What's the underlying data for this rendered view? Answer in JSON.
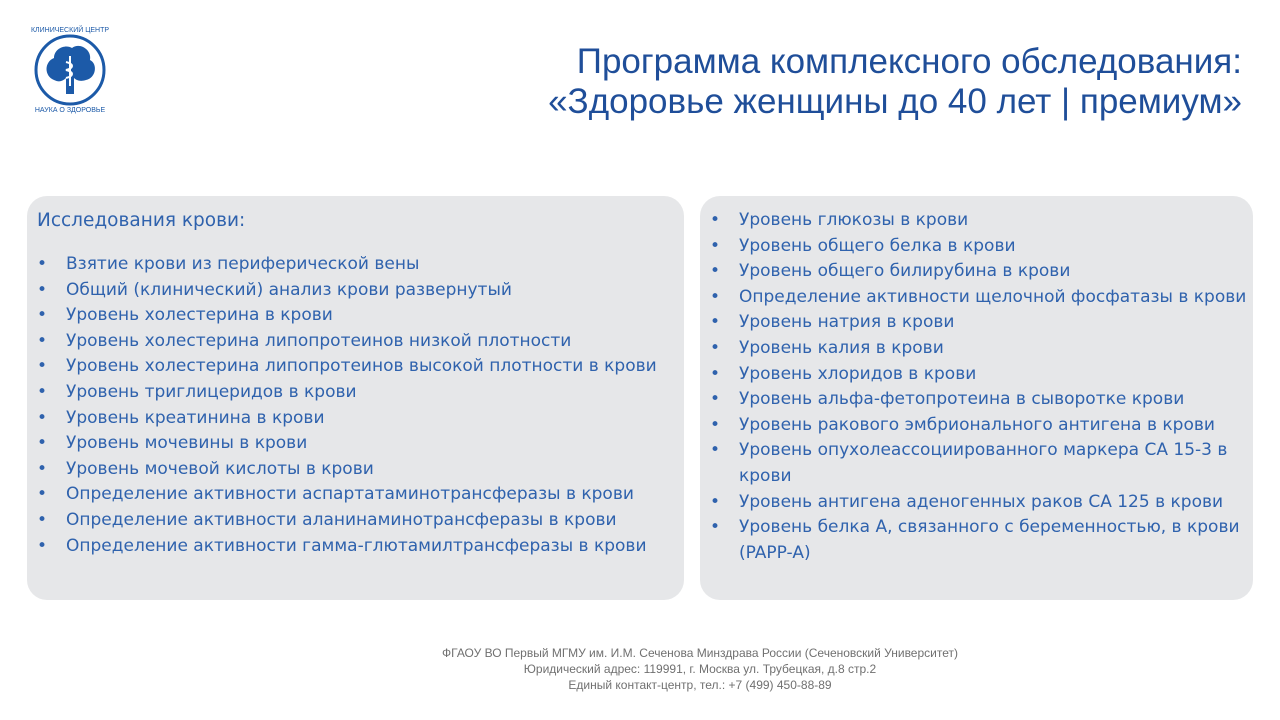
{
  "logo": {
    "text_top": "КЛИНИЧЕСКИЙ ЦЕНТР",
    "text_bottom": "НАУКА О ЗДОРОВЬЕ",
    "color": "#1c5aa8"
  },
  "title": {
    "line1": "Программа комплексного обследования:",
    "line2": "«Здоровье женщины до 40 лет | премиум»"
  },
  "left_panel": {
    "heading": "Исследования крови:",
    "items": [
      "Взятие крови из периферической вены",
      "Общий (клинический) анализ крови развернутый",
      "Уровень холестерина в крови",
      "Уровень холестерина липопротеинов низкой плотности",
      "Уровень холестерина липопротеинов высокой плотности в крови",
      "Уровень триглицеридов в крови",
      "Уровень креатинина в крови",
      "Уровень мочевины в крови",
      "Уровень мочевой кислоты в крови",
      "Определение активности аспартатаминотрансферазы в крови",
      "Определение активности аланинаминотрансферазы в крови",
      "Определение активности гамма-глютамилтрансферазы в крови"
    ]
  },
  "right_panel": {
    "items": [
      "Уровень глюкозы в крови",
      "Уровень общего белка в крови",
      "Уровень общего билирубина в крови",
      "Определение активности щелочной фосфатазы в крови",
      "Уровень натрия в крови",
      "Уровень калия в крови",
      "Уровень хлоридов в крови",
      "Уровень альфа-фетопротеина в сыворотке крови",
      "Уровень ракового эмбрионального антигена в крови",
      "Уровень опухолеассоциированного маркера СА 15-3 в крови",
      "Уровень антигена аденогенных раков СА 125 в крови",
      "Уровень белка А, связанного с беременностью, в крови (PAPP-A)"
    ]
  },
  "footer": {
    "line1": "ФГАОУ ВО Первый МГМУ им. И.М. Сеченова Минздрава России (Сеченовский Университет)",
    "line2": "Юридический адрес: 119991, г. Москва ул. Трубецкая, д.8 стр.2",
    "line3": "Единый контакт-центр, тел.: +7 (499) 450-88-89"
  }
}
